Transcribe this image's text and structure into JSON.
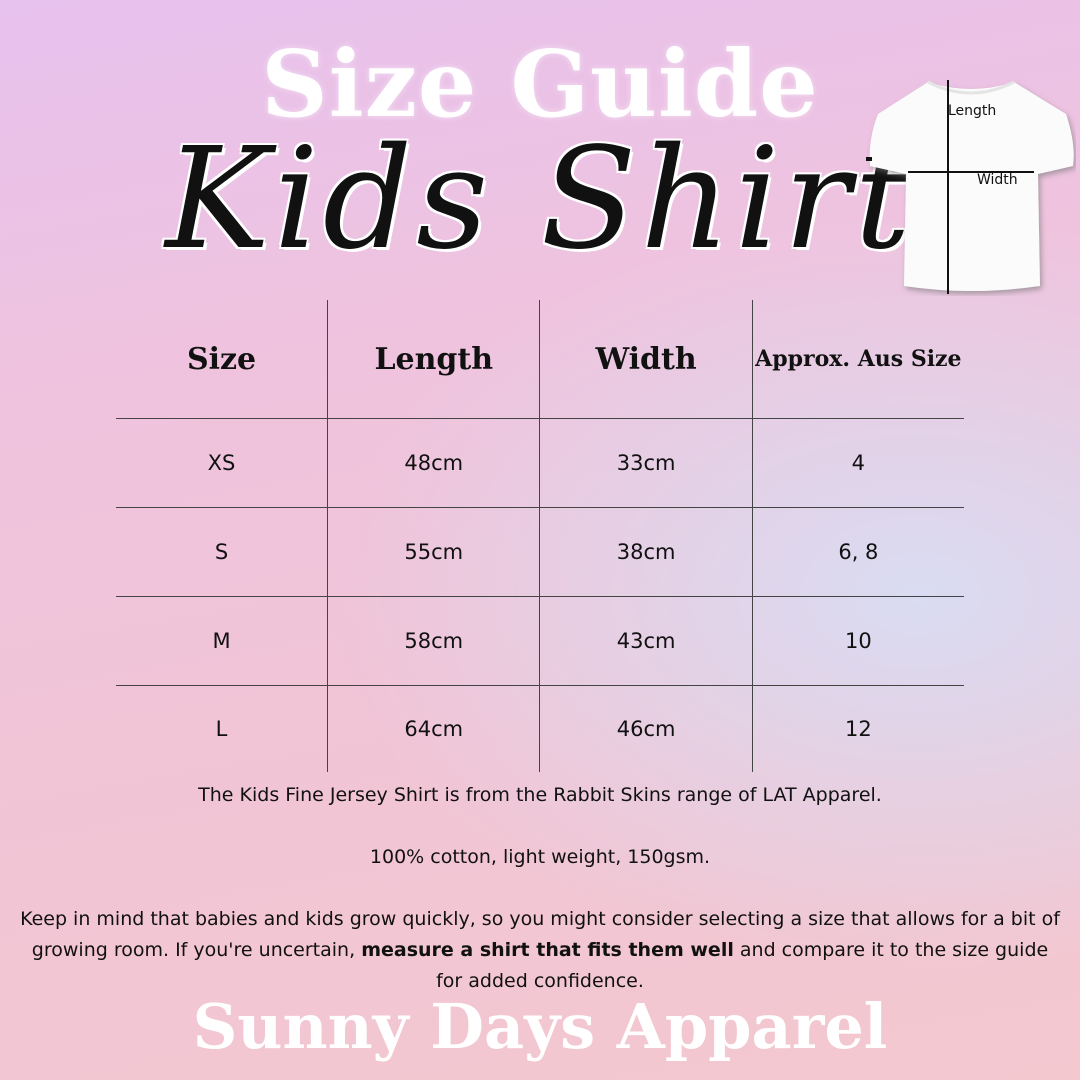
{
  "header": {
    "title": "Size Guide",
    "subtitle": "Kids Shirt"
  },
  "diagram": {
    "length_label": "Length",
    "width_label": "Width"
  },
  "table": {
    "headers": [
      "Size",
      "Length",
      "Width",
      "Approx. Aus Size"
    ],
    "rows": [
      [
        "XS",
        "48cm",
        "33cm",
        "4"
      ],
      [
        "S",
        "55cm",
        "38cm",
        "6, 8"
      ],
      [
        "M",
        "58cm",
        "43cm",
        "10"
      ],
      [
        "L",
        "64cm",
        "46cm",
        "12"
      ]
    ]
  },
  "notes": {
    "line1": "The Kids Fine Jersey Shirt is from the Rabbit Skins range of LAT Apparel.",
    "line2": "100% cotton, light weight, 150gsm.",
    "line3_pre": "Keep in mind that babies and kids grow quickly, so you might consider selecting a size that allows for a bit of growing room. If you're uncertain, ",
    "line3_bold": "measure a shirt that fits them well",
    "line3_post": " and compare it to the size guide for added confidence."
  },
  "footer": {
    "brand": "Sunny Days Apparel"
  }
}
